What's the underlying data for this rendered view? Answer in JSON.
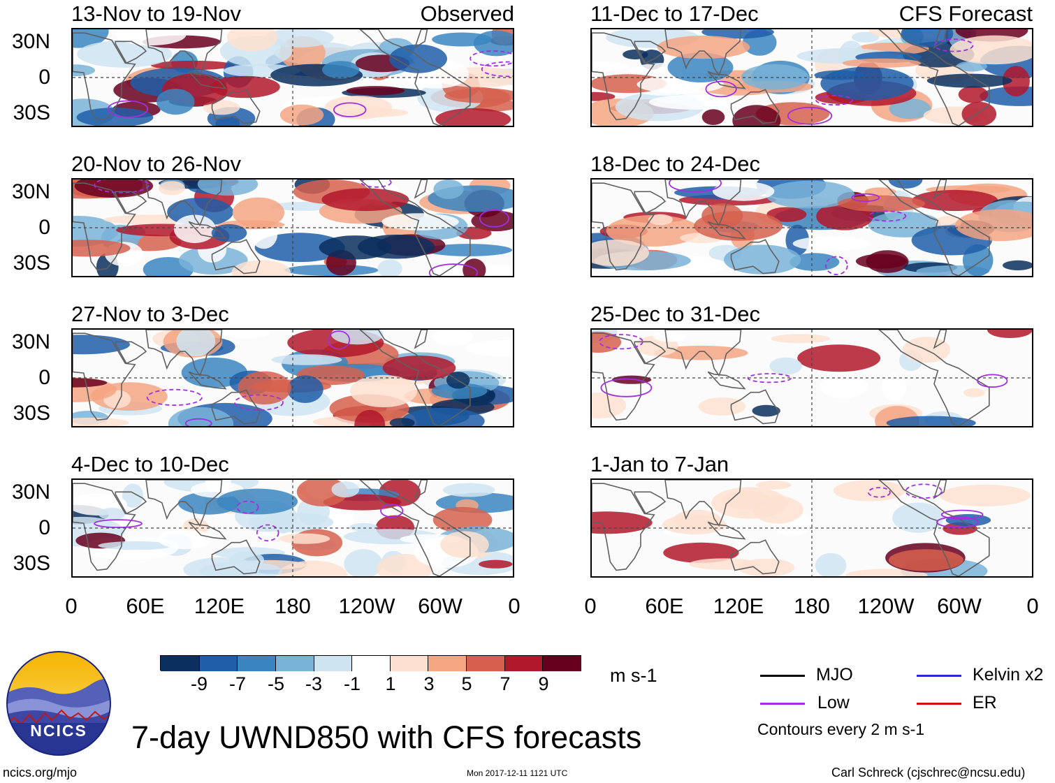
{
  "panels": [
    {
      "title": "13-Nov to 19-Nov",
      "tag": "Observed",
      "seed": 1
    },
    {
      "title": "11-Dec to 17-Dec",
      "tag": "CFS Forecast",
      "seed": 2
    },
    {
      "title": "20-Nov to 26-Nov",
      "tag": "",
      "seed": 3
    },
    {
      "title": "18-Dec to 24-Dec",
      "tag": "",
      "seed": 4
    },
    {
      "title": "27-Nov to 3-Dec",
      "tag": "",
      "seed": 5
    },
    {
      "title": "25-Dec to 31-Dec",
      "tag": "",
      "seed": 6
    },
    {
      "title": "4-Dec to 10-Dec",
      "tag": "",
      "seed": 7
    },
    {
      "title": "1-Jan to 7-Jan",
      "tag": "",
      "seed": 8
    }
  ],
  "y_axis_labels": [
    "30N",
    "0",
    "30S"
  ],
  "x_axis_labels": [
    "0",
    "60E",
    "120E",
    "180",
    "120W",
    "60W",
    "0"
  ],
  "colorbar": {
    "colors": [
      "#0b2f5e",
      "#1f5ea8",
      "#3a85c0",
      "#79b3d8",
      "#cfe4f1",
      "#ffffff",
      "#fde0d0",
      "#f4a582",
      "#d6604d",
      "#b2182b",
      "#67001f"
    ],
    "labels": [
      "-9",
      "-7",
      "-5",
      "-3",
      "-1",
      "1",
      "3",
      "5",
      "7",
      "9"
    ],
    "units": "m s-1"
  },
  "legend": {
    "items": [
      {
        "label": "MJO",
        "color": "#000000"
      },
      {
        "label": "Kelvin x2",
        "color": "#2a2ad0"
      },
      {
        "label": "Low",
        "color": "#a12ee0"
      },
      {
        "label": "ER",
        "color": "#d01010"
      }
    ],
    "contour_note": "Contours every 2 m s-1"
  },
  "logo_text": "NCICS",
  "main_title": "7-day UWND850 with CFS forecasts",
  "footer": {
    "left": "ncics.org/mjo",
    "center": "Mon 2017-12-11 1121 UTC",
    "right": "Carl Schreck (cjschrec@ncsu.edu)"
  }
}
